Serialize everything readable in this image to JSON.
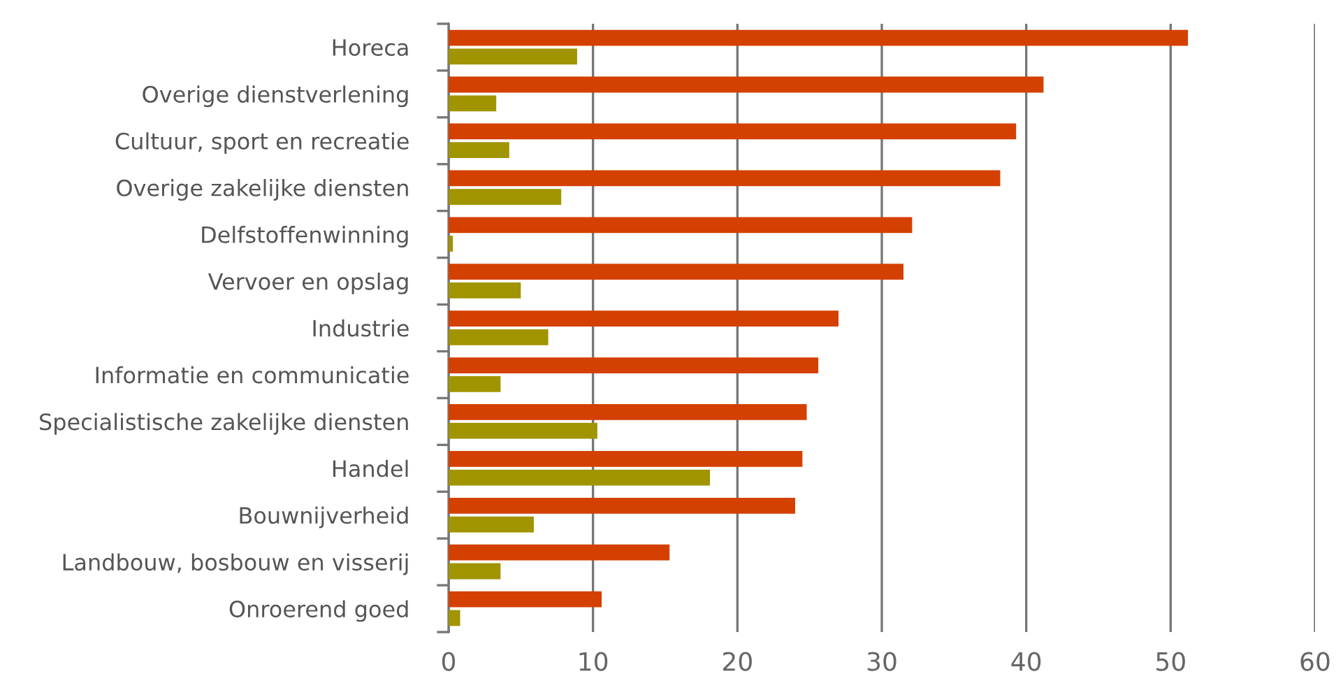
{
  "chart_data": {
    "type": "bar",
    "orientation": "horizontal",
    "categories": [
      "Horeca",
      "Overige dienstverlening",
      "Cultuur, sport en recreatie",
      "Overige zakelijke diensten",
      "Delfstoffenwinning",
      "Vervoer en opslag",
      "Industrie",
      "Informatie en communicatie",
      "Specialistische zakelijke diensten",
      "Handel",
      "Bouwnijverheid",
      "Landbouw, bosbouw en visserij",
      "Onroerend goed"
    ],
    "series": [
      {
        "color": "#d44000",
        "values": [
          51.2,
          41.2,
          39.3,
          38.2,
          32.1,
          31.5,
          27.0,
          25.6,
          24.8,
          24.5,
          24.0,
          15.3,
          10.6
        ]
      },
      {
        "color": "#a09400",
        "values": [
          8.9,
          3.3,
          4.2,
          7.8,
          0.3,
          5.0,
          6.9,
          3.6,
          10.3,
          18.1,
          5.9,
          3.6,
          0.8
        ]
      }
    ],
    "xlim": [
      0,
      60
    ],
    "xticks": [
      0,
      10,
      20,
      30,
      40,
      50,
      60
    ],
    "grid": "x",
    "legend": false
  }
}
